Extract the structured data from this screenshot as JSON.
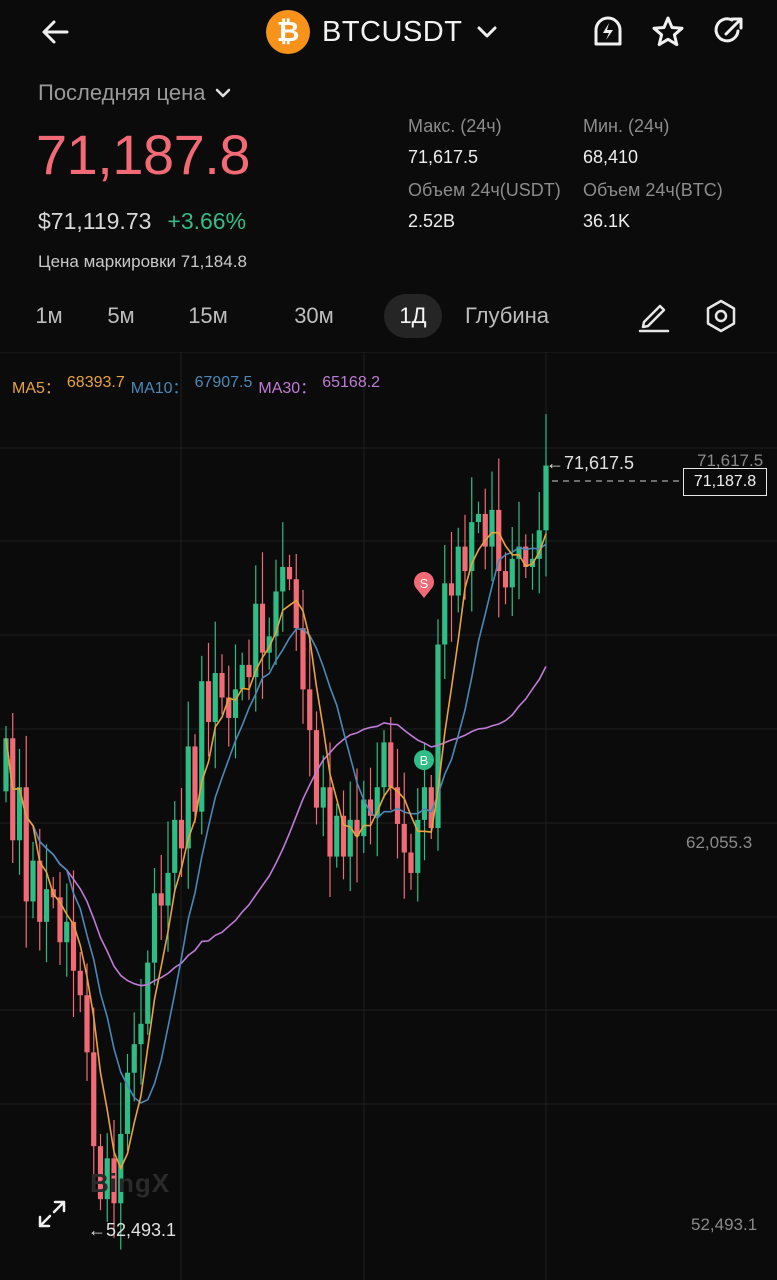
{
  "header": {
    "pair": "BTCUSDT",
    "coin_glyph": "₿"
  },
  "price_panel": {
    "label": "Последняя цена",
    "last_price": "71,187.8",
    "usd_price": "$71,119.73",
    "change": "+3.66%",
    "mark_price": "Цена маркировки 71,184.8"
  },
  "stats": {
    "high_label": "Макс. (24ч)",
    "high": "71,617.5",
    "low_label": "Мин. (24ч)",
    "low": "68,410",
    "vol_usdt_label": "Объем 24ч(USDT)",
    "vol_usdt": "2.52B",
    "vol_btc_label": "Объем 24ч(BTC)",
    "vol_btc": "36.1K"
  },
  "timeframes": [
    "1м",
    "5м",
    "15м",
    "30м",
    "1Д",
    "Глубина"
  ],
  "active_timeframe": "1Д",
  "chart": {
    "ma5_label": "MA5：",
    "ma5": "68393.7",
    "ma10_label": "MA10：",
    "ma10": "67907.5",
    "ma30_label": "MA30：",
    "ma30": "65168.2",
    "axis_top": "71,617.5",
    "axis_mid": "62,055.3",
    "axis_bottom": "52,493.1",
    "current_price": "71,187.8",
    "high_marker": "←71,617.5",
    "low_marker": "←52,493.1",
    "sell_marker": "S",
    "buy_marker": "B",
    "watermark": "BingX",
    "colors": {
      "up": "#2ebd85",
      "down": "#f26a76",
      "ma5": "#e8a33a",
      "ma10": "#4b88b8",
      "ma30": "#c07ad7"
    }
  }
}
